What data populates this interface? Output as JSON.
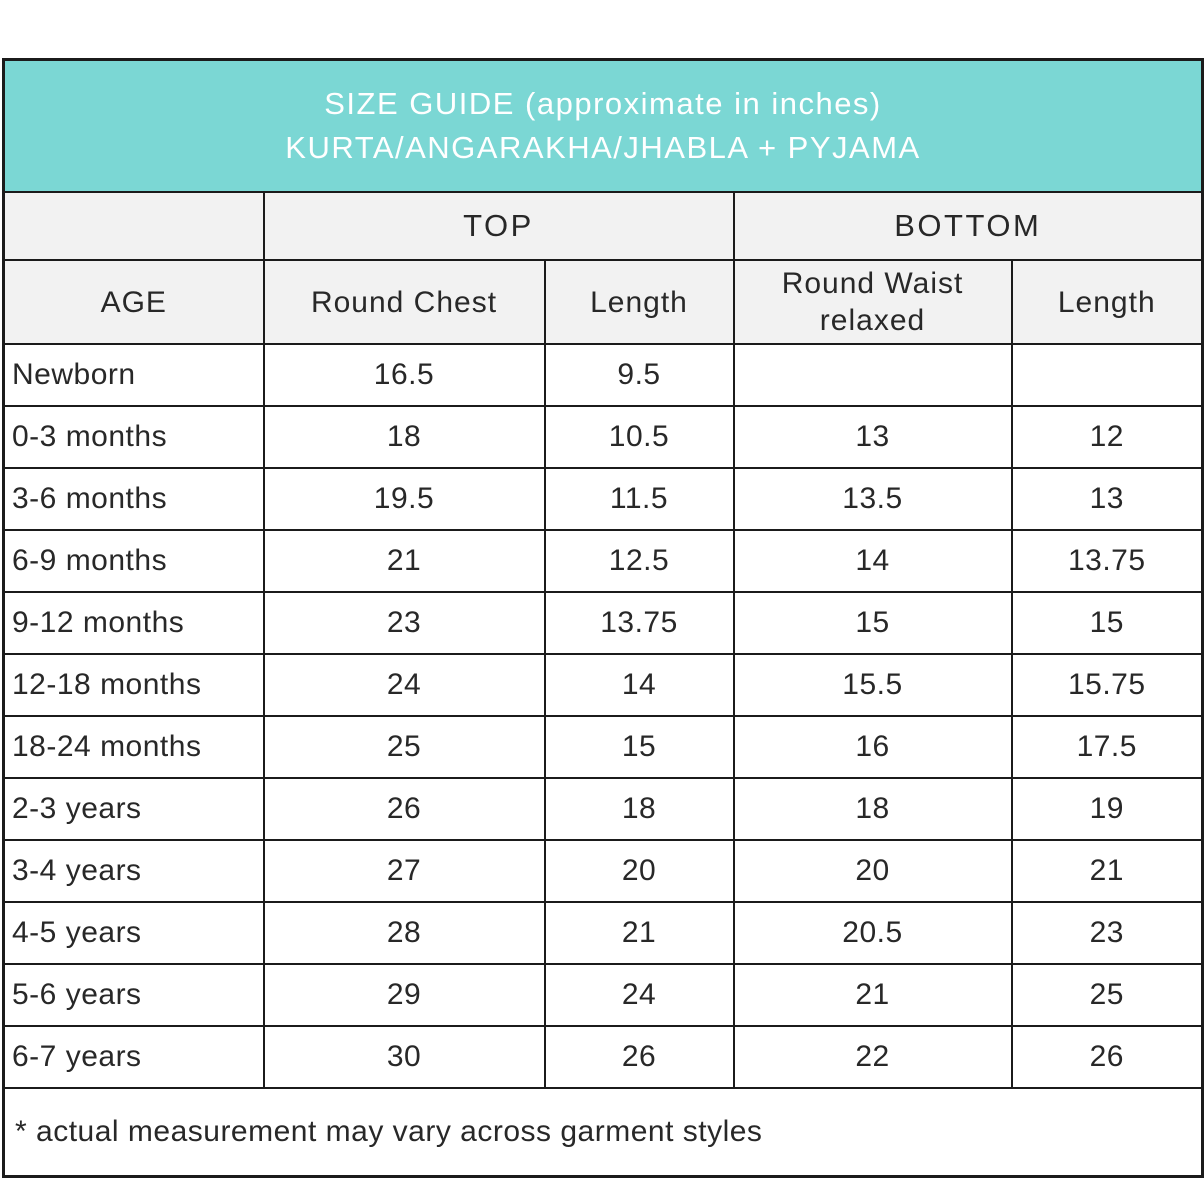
{
  "chart_data": {
    "type": "table",
    "title": "SIZE GUIDE (approximate in inches)",
    "subtitle": "KURTA/ANGARAKHA/JHABLA + PYJAMA",
    "column_groups": [
      {
        "label": "",
        "span": 1
      },
      {
        "label": "TOP",
        "span": 2
      },
      {
        "label": "BOTTOM",
        "span": 2
      }
    ],
    "columns": [
      "AGE",
      "Round Chest",
      "Length",
      "Round Waist relaxed",
      "Length"
    ],
    "rows": [
      [
        "Newborn",
        "16.5",
        "9.5",
        "",
        ""
      ],
      [
        "0-3 months",
        "18",
        "10.5",
        "13",
        "12"
      ],
      [
        "3-6 months",
        "19.5",
        "11.5",
        "13.5",
        "13"
      ],
      [
        "6-9 months",
        "21",
        "12.5",
        "14",
        "13.75"
      ],
      [
        "9-12 months",
        "23",
        "13.75",
        "15",
        "15"
      ],
      [
        "12-18 months",
        "24",
        "14",
        "15.5",
        "15.75"
      ],
      [
        "18-24 months",
        "25",
        "15",
        "16",
        "17.5"
      ],
      [
        "2-3 years",
        "26",
        "18",
        "18",
        "19"
      ],
      [
        "3-4 years",
        "27",
        "20",
        "20",
        "21"
      ],
      [
        "4-5 years",
        "28",
        "21",
        "20.5",
        "23"
      ],
      [
        "5-6 years",
        "29",
        "24",
        "21",
        "25"
      ],
      [
        "6-7 years",
        "30",
        "26",
        "22",
        "26"
      ]
    ],
    "footnote": "* actual measurement may vary across garment styles"
  },
  "colors": {
    "banner_bg": "#7BD7D4",
    "banner_text": "#FFFFFF",
    "subheader_bg": "#F2F2F2",
    "border": "#1B1B1B",
    "text": "#282828",
    "row_bg": "#FFFFFF"
  }
}
